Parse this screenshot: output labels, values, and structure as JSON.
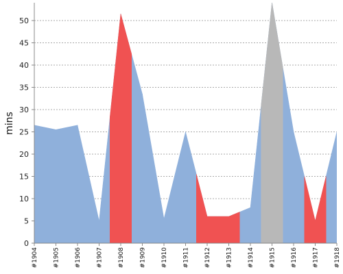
{
  "chart_data": {
    "type": "area",
    "title": "",
    "xlabel": "",
    "ylabel": "mins",
    "ylim": [
      0,
      54
    ],
    "yticks": [
      0,
      5,
      10,
      15,
      20,
      25,
      30,
      35,
      40,
      45,
      50
    ],
    "categories": [
      "#1904",
      "#1905",
      "#1906",
      "#1907",
      "#1908",
      "#1909",
      "#1910",
      "#1911",
      "#1912",
      "#1913",
      "#1914",
      "#1915",
      "#1916",
      "#1917",
      "#1918"
    ],
    "values": [
      26.5,
      25.5,
      26.5,
      5,
      51.5,
      33.5,
      5.5,
      25,
      6,
      6,
      8,
      54,
      25,
      5,
      25
    ],
    "grid": true,
    "colors": {
      "default": "#8fb0db",
      "highlight_red": "#f05252",
      "highlight_gray": "#b8b8b8",
      "grid": "#555555",
      "axis": "#888888"
    },
    "highlights": [
      {
        "category": "#1908",
        "color": "highlight_red"
      },
      {
        "category": "#1912",
        "color": "highlight_red"
      },
      {
        "category": "#1913",
        "color": "highlight_red"
      },
      {
        "category": "#1915",
        "color": "highlight_gray"
      },
      {
        "category": "#1917",
        "color": "highlight_red"
      }
    ]
  }
}
